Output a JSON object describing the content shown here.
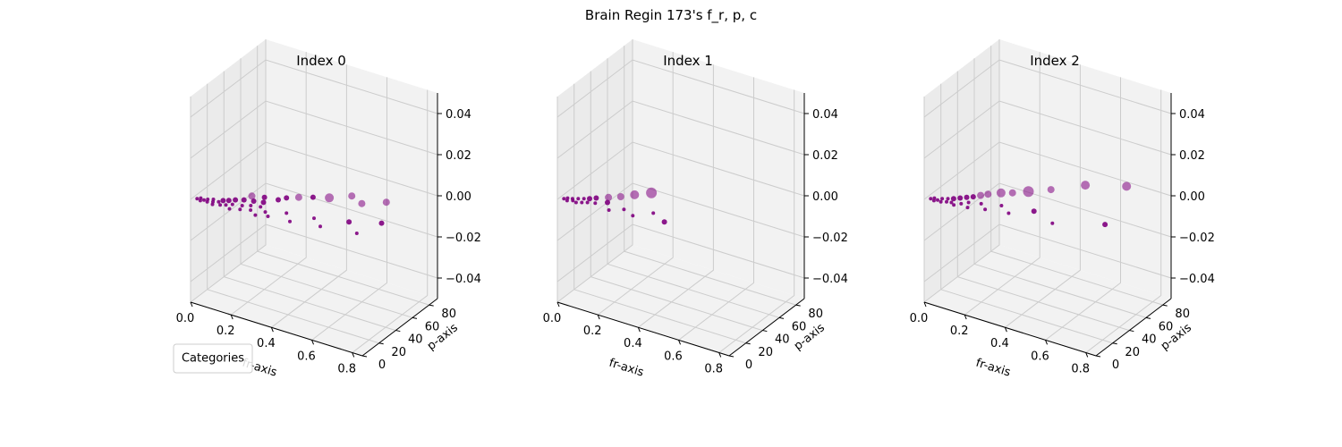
{
  "suptitle": "Brain Regin 173's f_r, p, c",
  "legend": {
    "title": "Categories",
    "placement": "lower-left"
  },
  "colors": {
    "point": "#800080",
    "pane": "#f2f2f2",
    "grid": "#cccccc",
    "axis": "#000000"
  },
  "chart_data": [
    {
      "type": "scatter",
      "title": "Index 0",
      "xlabel": "fr-axis",
      "ylabel": "p-axis",
      "zlabel": "",
      "xlim": [
        0,
        0.85
      ],
      "ylim": [
        0,
        90
      ],
      "zlim": [
        -0.05,
        0.05
      ],
      "xticks": [
        "0.0",
        "0.2",
        "0.4",
        "0.6",
        "0.8"
      ],
      "yticks": [
        "0",
        "20",
        "40",
        "60",
        "80"
      ],
      "zticks": [
        "−0.04",
        "−0.02",
        "0.00",
        "0.02",
        "0.04"
      ],
      "points": [
        {
          "x": 0.02,
          "y": 3,
          "s": 2
        },
        {
          "x": 0.03,
          "y": 5,
          "s": 2
        },
        {
          "x": 0.04,
          "y": 2,
          "s": 2
        },
        {
          "x": 0.05,
          "y": 4,
          "s": 2
        },
        {
          "x": 0.06,
          "y": 6,
          "s": 2
        },
        {
          "x": 0.07,
          "y": 3,
          "s": 2
        },
        {
          "x": 0.08,
          "y": 8,
          "s": 2
        },
        {
          "x": 0.09,
          "y": 5,
          "s": 2
        },
        {
          "x": 0.1,
          "y": 2,
          "s": 2
        },
        {
          "x": 0.11,
          "y": 7,
          "s": 2
        },
        {
          "x": 0.12,
          "y": 10,
          "s": 3
        },
        {
          "x": 0.13,
          "y": 4,
          "s": 2
        },
        {
          "x": 0.14,
          "y": 12,
          "s": 3
        },
        {
          "x": 0.15,
          "y": 6,
          "s": 2
        },
        {
          "x": 0.16,
          "y": 15,
          "s": 3
        },
        {
          "x": 0.17,
          "y": 9,
          "s": 2
        },
        {
          "x": 0.18,
          "y": 3,
          "s": 2
        },
        {
          "x": 0.19,
          "y": 18,
          "s": 3
        },
        {
          "x": 0.2,
          "y": 25,
          "s": 4
        },
        {
          "x": 0.21,
          "y": 11,
          "s": 2
        },
        {
          "x": 0.22,
          "y": 6,
          "s": 2
        },
        {
          "x": 0.23,
          "y": 20,
          "s": 3
        },
        {
          "x": 0.24,
          "y": 14,
          "s": 2
        },
        {
          "x": 0.25,
          "y": 28,
          "s": 3
        },
        {
          "x": 0.26,
          "y": 9,
          "s": 2
        },
        {
          "x": 0.27,
          "y": 22,
          "s": 3
        },
        {
          "x": 0.28,
          "y": 16,
          "s": 2
        },
        {
          "x": 0.3,
          "y": 5,
          "s": 2
        },
        {
          "x": 0.31,
          "y": 30,
          "s": 3
        },
        {
          "x": 0.32,
          "y": 12,
          "s": 2
        },
        {
          "x": 0.33,
          "y": 35,
          "s": 3
        },
        {
          "x": 0.35,
          "y": 8,
          "s": 2
        },
        {
          "x": 0.37,
          "y": 40,
          "s": 4
        },
        {
          "x": 0.4,
          "y": 18,
          "s": 2
        },
        {
          "x": 0.42,
          "y": 45,
          "s": 3
        },
        {
          "x": 0.45,
          "y": 10,
          "s": 2
        },
        {
          "x": 0.48,
          "y": 50,
          "s": 5
        },
        {
          "x": 0.52,
          "y": 22,
          "s": 2
        },
        {
          "x": 0.55,
          "y": 60,
          "s": 4
        },
        {
          "x": 0.58,
          "y": 15,
          "s": 2
        },
        {
          "x": 0.62,
          "y": 55,
          "s": 4
        },
        {
          "x": 0.66,
          "y": 30,
          "s": 3
        },
        {
          "x": 0.7,
          "y": 65,
          "s": 4
        },
        {
          "x": 0.74,
          "y": 20,
          "s": 2
        },
        {
          "x": 0.78,
          "y": 40,
          "s": 3
        }
      ]
    },
    {
      "type": "scatter",
      "title": "Index 1",
      "xlabel": "fr-axis",
      "ylabel": "p-axis",
      "zlabel": "",
      "xlim": [
        0,
        0.85
      ],
      "ylim": [
        0,
        90
      ],
      "zlim": [
        -0.05,
        0.05
      ],
      "xticks": [
        "0.0",
        "0.2",
        "0.4",
        "0.6",
        "0.8"
      ],
      "yticks": [
        "0",
        "20",
        "40",
        "60",
        "80"
      ],
      "zticks": [
        "−0.04",
        "−0.02",
        "0.00",
        "0.02",
        "0.04"
      ],
      "points": [
        {
          "x": 0.02,
          "y": 3,
          "s": 2
        },
        {
          "x": 0.03,
          "y": 5,
          "s": 2
        },
        {
          "x": 0.04,
          "y": 2,
          "s": 2
        },
        {
          "x": 0.05,
          "y": 6,
          "s": 2
        },
        {
          "x": 0.06,
          "y": 4,
          "s": 2
        },
        {
          "x": 0.07,
          "y": 8,
          "s": 2
        },
        {
          "x": 0.08,
          "y": 3,
          "s": 2
        },
        {
          "x": 0.09,
          "y": 10,
          "s": 2
        },
        {
          "x": 0.1,
          "y": 5,
          "s": 2
        },
        {
          "x": 0.11,
          "y": 12,
          "s": 3
        },
        {
          "x": 0.12,
          "y": 7,
          "s": 2
        },
        {
          "x": 0.13,
          "y": 15,
          "s": 3
        },
        {
          "x": 0.15,
          "y": 9,
          "s": 2
        },
        {
          "x": 0.17,
          "y": 20,
          "s": 4
        },
        {
          "x": 0.19,
          "y": 14,
          "s": 3
        },
        {
          "x": 0.21,
          "y": 25,
          "s": 4
        },
        {
          "x": 0.23,
          "y": 6,
          "s": 2
        },
        {
          "x": 0.25,
          "y": 32,
          "s": 5
        },
        {
          "x": 0.28,
          "y": 12,
          "s": 2
        },
        {
          "x": 0.3,
          "y": 40,
          "s": 6
        },
        {
          "x": 0.34,
          "y": 8,
          "s": 2
        },
        {
          "x": 0.4,
          "y": 18,
          "s": 2
        },
        {
          "x": 0.48,
          "y": 12,
          "s": 3
        }
      ]
    },
    {
      "type": "scatter",
      "title": "Index 2",
      "xlabel": "fr-axis",
      "ylabel": "p-axis",
      "zlabel": "",
      "xlim": [
        0,
        0.85
      ],
      "ylim": [
        0,
        90
      ],
      "zlim": [
        -0.05,
        0.05
      ],
      "xticks": [
        "0.0",
        "0.2",
        "0.4",
        "0.6",
        "0.8"
      ],
      "yticks": [
        "0",
        "20",
        "40",
        "60",
        "80"
      ],
      "zticks": [
        "−0.04",
        "−0.02",
        "0.00",
        "0.02",
        "0.04"
      ],
      "points": [
        {
          "x": 0.02,
          "y": 3,
          "s": 2
        },
        {
          "x": 0.03,
          "y": 5,
          "s": 2
        },
        {
          "x": 0.04,
          "y": 2,
          "s": 2
        },
        {
          "x": 0.05,
          "y": 4,
          "s": 2
        },
        {
          "x": 0.06,
          "y": 7,
          "s": 2
        },
        {
          "x": 0.07,
          "y": 3,
          "s": 2
        },
        {
          "x": 0.08,
          "y": 9,
          "s": 2
        },
        {
          "x": 0.09,
          "y": 5,
          "s": 2
        },
        {
          "x": 0.1,
          "y": 11,
          "s": 3
        },
        {
          "x": 0.11,
          "y": 6,
          "s": 2
        },
        {
          "x": 0.12,
          "y": 14,
          "s": 3
        },
        {
          "x": 0.13,
          "y": 4,
          "s": 2
        },
        {
          "x": 0.14,
          "y": 17,
          "s": 3
        },
        {
          "x": 0.15,
          "y": 8,
          "s": 2
        },
        {
          "x": 0.16,
          "y": 20,
          "s": 3
        },
        {
          "x": 0.17,
          "y": 12,
          "s": 2
        },
        {
          "x": 0.18,
          "y": 24,
          "s": 4
        },
        {
          "x": 0.19,
          "y": 6,
          "s": 2
        },
        {
          "x": 0.2,
          "y": 28,
          "s": 4
        },
        {
          "x": 0.22,
          "y": 15,
          "s": 2
        },
        {
          "x": 0.24,
          "y": 34,
          "s": 5
        },
        {
          "x": 0.26,
          "y": 10,
          "s": 2
        },
        {
          "x": 0.28,
          "y": 38,
          "s": 4
        },
        {
          "x": 0.3,
          "y": 20,
          "s": 2
        },
        {
          "x": 0.33,
          "y": 45,
          "s": 6
        },
        {
          "x": 0.36,
          "y": 14,
          "s": 2
        },
        {
          "x": 0.4,
          "y": 55,
          "s": 4
        },
        {
          "x": 0.44,
          "y": 25,
          "s": 3
        },
        {
          "x": 0.5,
          "y": 72,
          "s": 5
        },
        {
          "x": 0.56,
          "y": 18,
          "s": 2
        },
        {
          "x": 0.65,
          "y": 85,
          "s": 5
        },
        {
          "x": 0.75,
          "y": 35,
          "s": 3
        }
      ]
    }
  ]
}
